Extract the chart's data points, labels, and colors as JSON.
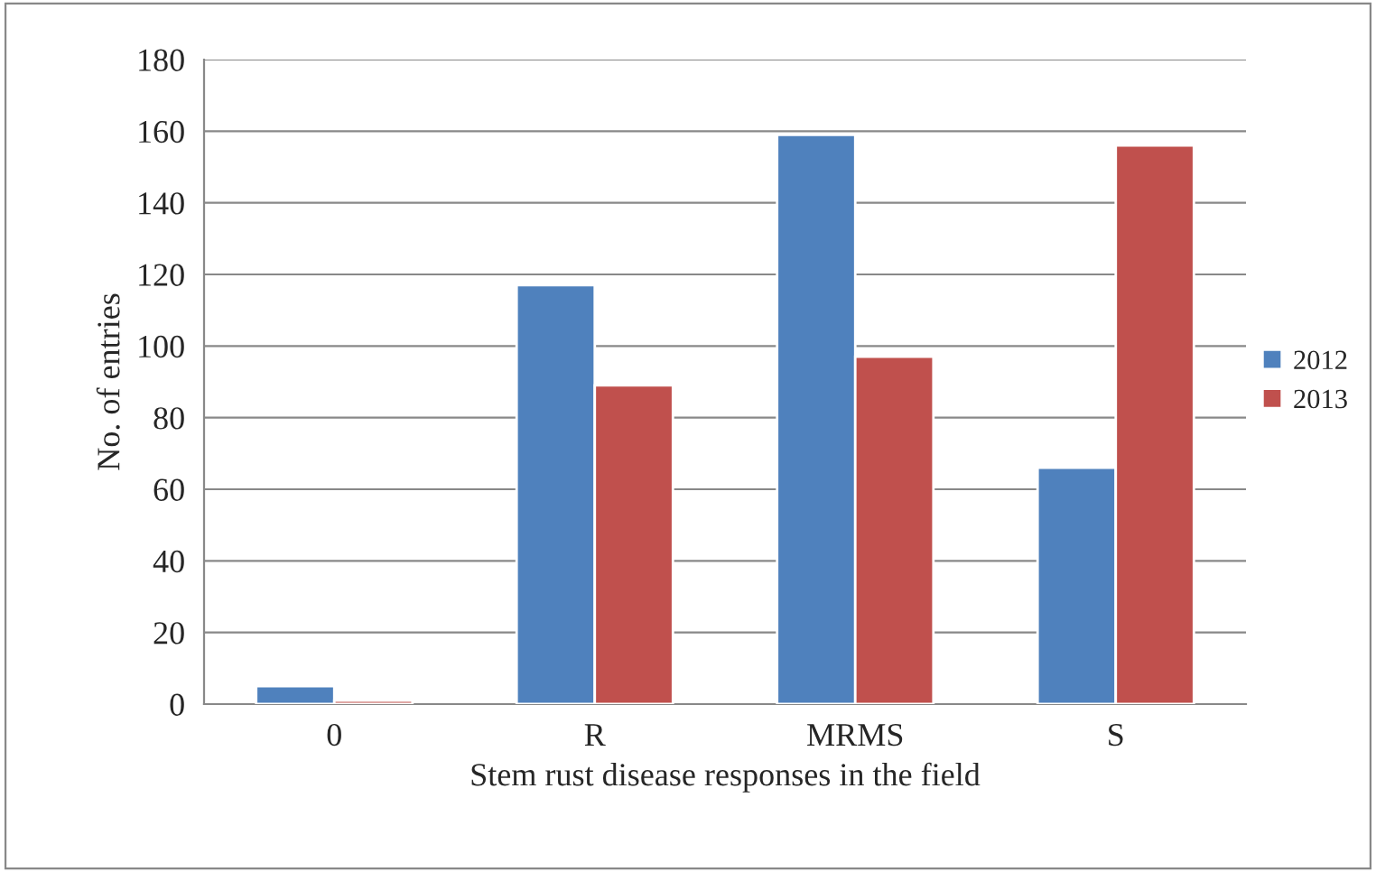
{
  "chart_data": {
    "type": "bar",
    "xlabel": "Stem rust disease responses in the field",
    "ylabel": "No. of entries",
    "categories": [
      "0",
      "R",
      "MRMS",
      "S"
    ],
    "series": [
      {
        "name": "2012",
        "color": "#4f81bd",
        "values": [
          5,
          117,
          159,
          66
        ]
      },
      {
        "name": "2013",
        "color": "#c0504d",
        "values": [
          1,
          89,
          97,
          156
        ]
      }
    ],
    "ylim": [
      0,
      180
    ],
    "yticks": [
      0,
      20,
      40,
      60,
      80,
      100,
      120,
      140,
      160,
      180
    ],
    "grid": "y",
    "legend": "right"
  }
}
